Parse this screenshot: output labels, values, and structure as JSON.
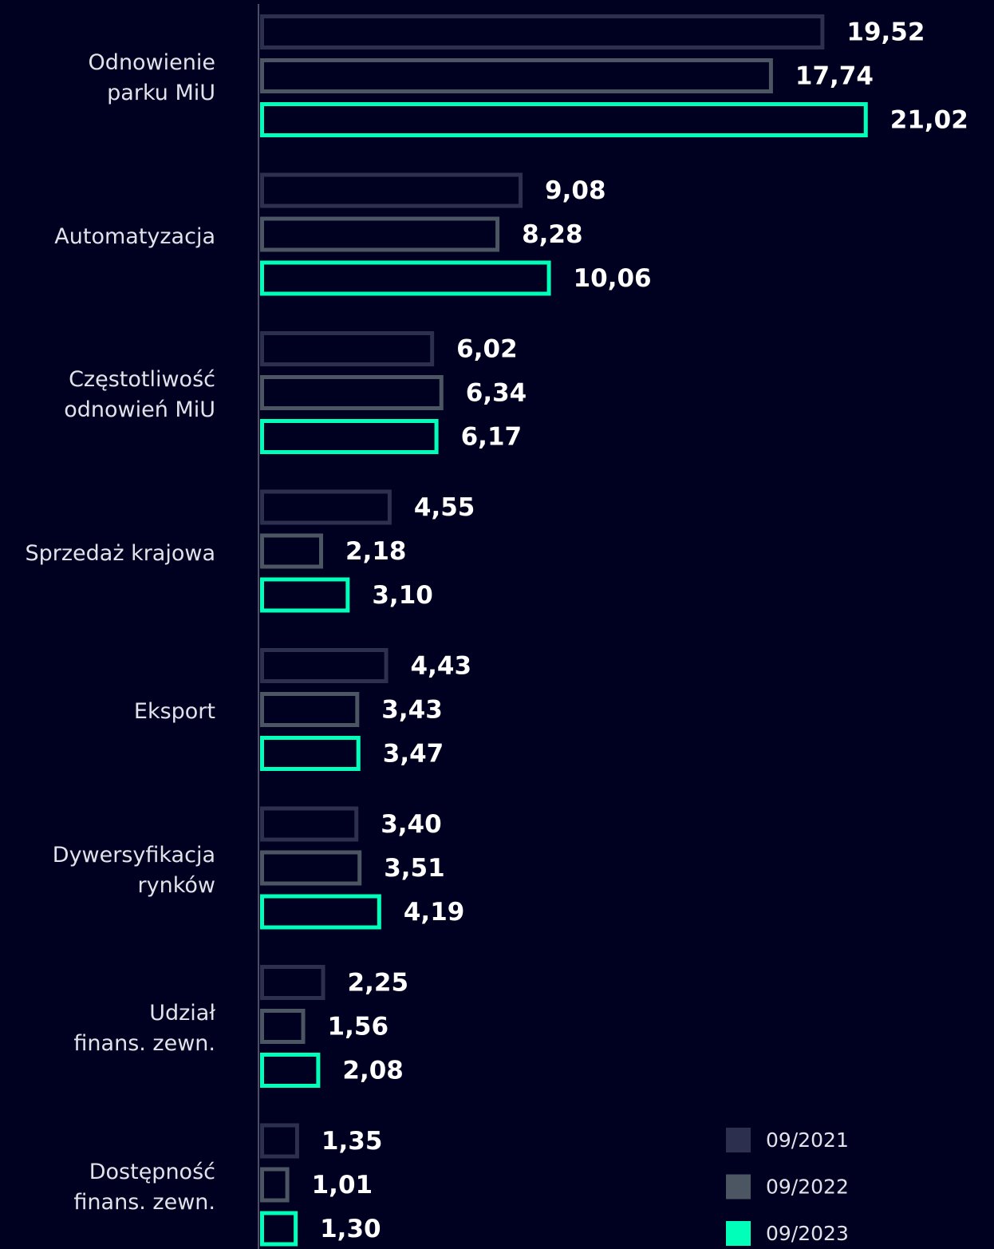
{
  "chart_data": {
    "type": "hbar",
    "categories": [
      "Odnowienie\nparku MiU",
      "Automatyzacja",
      "Częstotliwość\nodnowień MiU",
      "Sprzedaż krajowa",
      "Eksport",
      "Dywersyfikacja\nrynków",
      "Udział\nfinans. zewn.",
      "Dostępność\nfinans. zewn."
    ],
    "series": [
      {
        "name": "09/2021",
        "color": "#2c2f4d",
        "values": [
          19.52,
          9.08,
          6.02,
          4.55,
          4.43,
          3.4,
          2.25,
          1.35
        ],
        "value_labels": [
          "19,52",
          "9,08",
          "6,02",
          "4,55",
          "4,43",
          "3,40",
          "2,25",
          "1,35"
        ]
      },
      {
        "name": "09/2022",
        "color": "#4b5662",
        "values": [
          17.74,
          8.28,
          6.34,
          2.18,
          3.43,
          3.51,
          1.56,
          1.01
        ],
        "value_labels": [
          "17,74",
          "8,28",
          "6,34",
          "2,18",
          "3,43",
          "3,51",
          "1,56",
          "1,01"
        ]
      },
      {
        "name": "09/2023",
        "color": "#00ffb9",
        "values": [
          21.02,
          10.06,
          6.17,
          3.1,
          3.47,
          4.19,
          2.08,
          1.3
        ],
        "value_labels": [
          "21,02",
          "10,06",
          "6,17",
          "3,10",
          "3,47",
          "4,19",
          "2,08",
          "1,30"
        ]
      }
    ],
    "xlim": [
      0,
      25
    ],
    "legend": "bottom-right"
  }
}
